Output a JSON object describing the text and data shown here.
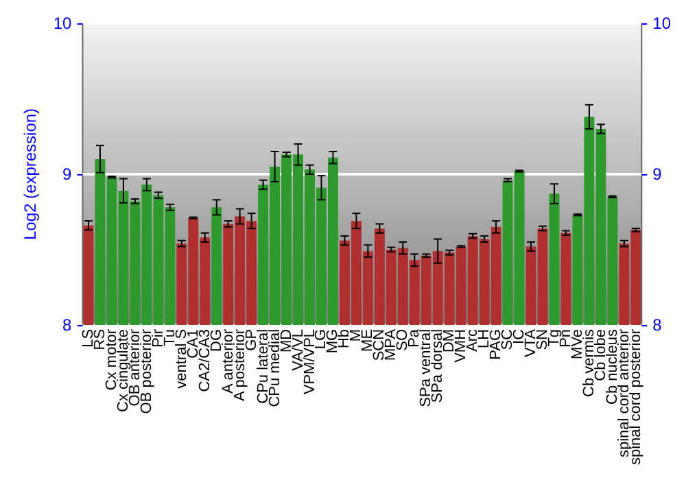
{
  "chart_data": {
    "type": "bar",
    "ylabel": "Log2 (expression)",
    "categories": [
      "LS",
      "RS",
      "Cx motor",
      "Cx cingulate",
      "OB anterior",
      "OB posterior",
      "Pir",
      "Tu",
      "ventral S",
      "CA1",
      "CA2/CA3",
      "DG",
      "A anterior",
      "A posterior",
      "GP",
      "CPu lateral",
      "CPu medial",
      "MD",
      "VA/VL",
      "VPM/VPL",
      "LG",
      "MG",
      "Hb",
      "M",
      "ME",
      "SCN",
      "MPA",
      "SO",
      "Pa",
      "SPa ventral",
      "SPa dorsal",
      "DM",
      "VMH",
      "Arc",
      "LH",
      "PAG",
      "SC",
      "IC",
      "VTA",
      "SN",
      "Tg",
      "Pn",
      "MVe",
      "Cb vermis",
      "Cb lobe",
      "Cb nucleus",
      "spinal cord anterior",
      "spinal cord posterior"
    ],
    "values": [
      8.66,
      9.1,
      8.98,
      8.89,
      8.82,
      8.93,
      8.86,
      8.78,
      8.54,
      8.71,
      8.58,
      8.78,
      8.67,
      8.72,
      8.69,
      8.93,
      9.05,
      9.13,
      9.13,
      9.03,
      8.91,
      9.11,
      8.56,
      8.69,
      8.49,
      8.64,
      8.5,
      8.51,
      8.43,
      8.46,
      8.49,
      8.48,
      8.52,
      8.59,
      8.57,
      8.65,
      8.96,
      9.02,
      8.52,
      8.64,
      8.87,
      8.61,
      8.73,
      9.38,
      9.3,
      8.85,
      8.54,
      8.63
    ],
    "errors": [
      0.03,
      0.09,
      0.005,
      0.08,
      0.015,
      0.04,
      0.02,
      0.02,
      0.02,
      0.005,
      0.03,
      0.05,
      0.02,
      0.05,
      0.05,
      0.03,
      0.1,
      0.015,
      0.07,
      0.03,
      0.08,
      0.04,
      0.03,
      0.05,
      0.04,
      0.03,
      0.015,
      0.04,
      0.04,
      0.01,
      0.08,
      0.015,
      0.005,
      0.015,
      0.02,
      0.04,
      0.01,
      0.005,
      0.03,
      0.015,
      0.065,
      0.015,
      0.005,
      0.08,
      0.03,
      0.005,
      0.02,
      0.01
    ],
    "colors": [
      "#b03030",
      "#2e9a2e",
      "#2e9a2e",
      "#2e9a2e",
      "#2e9a2e",
      "#2e9a2e",
      "#2e9a2e",
      "#2e9a2e",
      "#b03030",
      "#b03030",
      "#b03030",
      "#2e9a2e",
      "#b03030",
      "#b03030",
      "#b03030",
      "#2e9a2e",
      "#2e9a2e",
      "#2e9a2e",
      "#2e9a2e",
      "#2e9a2e",
      "#2e9a2e",
      "#2e9a2e",
      "#b03030",
      "#b03030",
      "#b03030",
      "#b03030",
      "#b03030",
      "#b03030",
      "#b03030",
      "#b03030",
      "#b03030",
      "#b03030",
      "#b03030",
      "#b03030",
      "#b03030",
      "#b03030",
      "#2e9a2e",
      "#2e9a2e",
      "#b03030",
      "#b03030",
      "#2e9a2e",
      "#b03030",
      "#2e9a2e",
      "#2e9a2e",
      "#2e9a2e",
      "#2e9a2e",
      "#b03030",
      "#b03030"
    ],
    "ylim": [
      8,
      10
    ],
    "yticks": [
      8,
      9,
      10
    ],
    "y2lim": [
      8,
      10
    ],
    "y2ticks": [
      8,
      9,
      10
    ],
    "grid": "y"
  }
}
